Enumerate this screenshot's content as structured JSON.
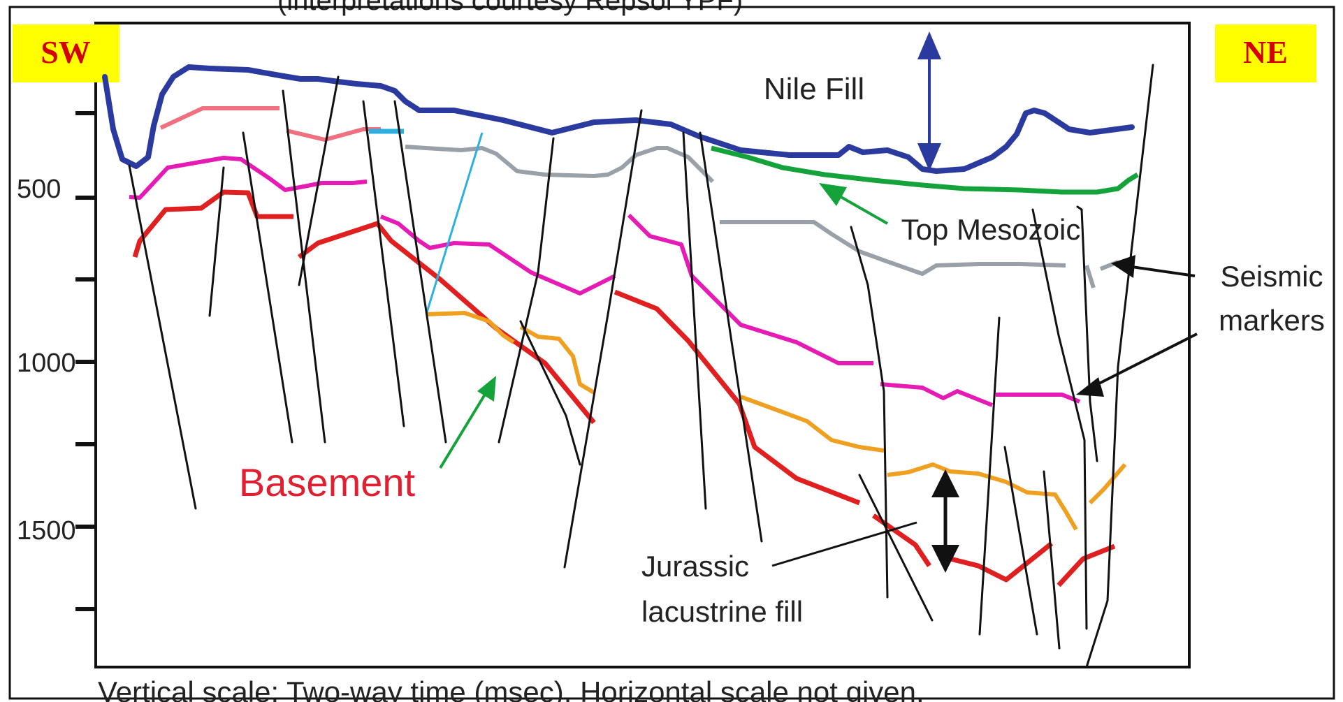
{
  "header_cut_text": "(interpretations courtesy Repsol YPF)",
  "orientation": {
    "left": "SW",
    "right": "NE"
  },
  "badge_color": "#ffff00",
  "badge_text_color": "#d40000",
  "vertical_axis": {
    "ticks": [
      {
        "label": "500",
        "value": 500
      },
      {
        "label": "1000",
        "value": 1000
      },
      {
        "label": "1500",
        "value": 1500
      }
    ]
  },
  "labels": {
    "nile_fill": "Nile Fill",
    "top_mesozoic": "Top Mesozoic",
    "seismic_markers_1": "Seismic",
    "seismic_markers_2": "markers",
    "basement": "Basement",
    "jurassic_1": "Jurassic",
    "jurassic_2": "lacustrine fill"
  },
  "caption": "Vertical scale: Two-way time (msec). Horizontal scale not given.",
  "colors": {
    "nile_fill_horizon": "#2b3a9e",
    "top_mesozoic_horizon": "#14a23a",
    "grey_marker": "#9aa0a8",
    "magenta_marker": "#e61ab4",
    "orange_marker": "#f0a020",
    "basement_horizon": "#e02020",
    "basement_label": "#e02030",
    "faults": "#111111"
  }
}
